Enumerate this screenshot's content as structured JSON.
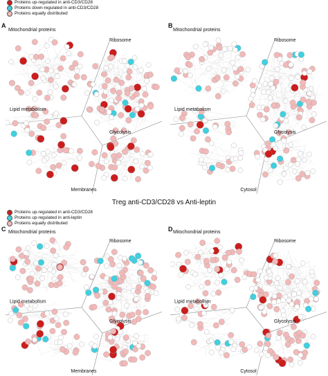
{
  "legend_top": [
    {
      "label": "Proteins up-regulated in anti-CD3/CD28",
      "color": "#cc1d1d",
      "swatch": "red"
    },
    {
      "label": "Proteins down-regulated in anti-CD3/CD28",
      "color": "#3fd0e0",
      "swatch": "cyan"
    },
    {
      "label": "Proteins equally distributed",
      "color": "#f2b9b9",
      "swatch": "pink"
    }
  ],
  "section_title_bottom": "Treg anti-CD3/CD28 vs Anti-leptin",
  "legend_bottom": [
    {
      "label": "Proteins up-regulated in anti-CD3/CD28",
      "color": "#cc1d1d",
      "swatch": "red"
    },
    {
      "label": "Proteins up-regulated in anti-leptin",
      "color": "#3fd0e0",
      "swatch": "cyan"
    },
    {
      "label": "Proteins equally distributed",
      "color": "#f2b9b9",
      "swatch": "pink"
    }
  ],
  "panels": [
    {
      "letter": "A",
      "caption": "Membranes",
      "labels": {
        "mito": "Mitochondrial proteins",
        "ribo": "Ribosome",
        "glyco": "Glycolysis",
        "lipid": "Lipid metabolism"
      }
    },
    {
      "letter": "B",
      "caption": "Cytosol",
      "labels": {
        "mito": "Mitochondrial proteins",
        "ribo": "Ribosome",
        "glyco": "Glycolysis",
        "lipid": "Lipid metabolism"
      }
    },
    {
      "letter": "C",
      "caption": "Membranes",
      "labels": {
        "mito": "Mitochondrial proteins",
        "ribo": "Ribosome",
        "glyco": "Glycolysis",
        "lipid": "Lipid metabolism"
      }
    },
    {
      "letter": "D",
      "caption": "Cytosol",
      "labels": {
        "mito": "Mitochondrial proteins",
        "ribo": "Ribosome",
        "glyco": "Glycolysis",
        "lipid": "Lipid metabolism"
      }
    }
  ],
  "colors": {
    "up": "#cc1d1d",
    "down": "#3fd0e0",
    "equal": "#f2b9b9",
    "neutral": "#ffffff",
    "line": "#888888"
  }
}
